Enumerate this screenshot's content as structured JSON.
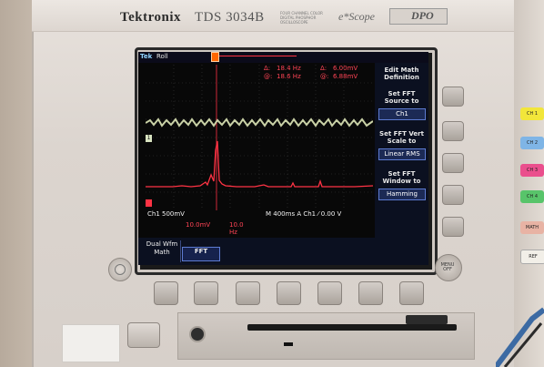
{
  "scope": {
    "brand": "Tektronix",
    "model": "TDS 3034B",
    "model_subtitle": "FOUR CHANNEL COLOR DIGITAL PHOSPHOR OSCILLOSCOPE",
    "escope": "e*Scope",
    "dpo_badge": "DPO"
  },
  "screen": {
    "status": {
      "tek": "Tek",
      "mode": "Roll"
    },
    "cursor_readout": {
      "delta_label": "Δ:",
      "at_label": "@:",
      "delta_freq": "18.4 Hz",
      "at_freq": "18.6 Hz",
      "delta_volt": "6.00mV",
      "at_volt": "6.88mV"
    },
    "ch1_marker": "1",
    "settings": {
      "ch1_scale": "Ch1  500mV",
      "timebase": "M 400ms  A  Ch1  ⁄   0.00 V",
      "math_scale": "10.0mV",
      "math_freq": "10.0 Hz"
    },
    "side_menu": {
      "items": [
        {
          "title": "Edit Math Definition",
          "box": ""
        },
        {
          "title": "Set FFT Source to",
          "box": "Ch1"
        },
        {
          "title": "Set FFT Vert Scale to",
          "box": "Linear RMS"
        },
        {
          "title": "Set FFT Window to",
          "box": "Hamming"
        }
      ]
    },
    "bottom_menu": {
      "dual_wfm_math": "Dual Wfm Math",
      "fft": "FFT"
    }
  },
  "panel": {
    "menu_off": "MENU OFF",
    "channel_buttons": [
      "CH 1",
      "CH 2",
      "CH 3",
      "CH 4",
      "MATH",
      "REF"
    ],
    "channel_colors": [
      "#f2e63a",
      "#7fb5e6",
      "#ea4f8d",
      "#58c46a",
      "#e8b3a4",
      "#f2efe8"
    ]
  }
}
